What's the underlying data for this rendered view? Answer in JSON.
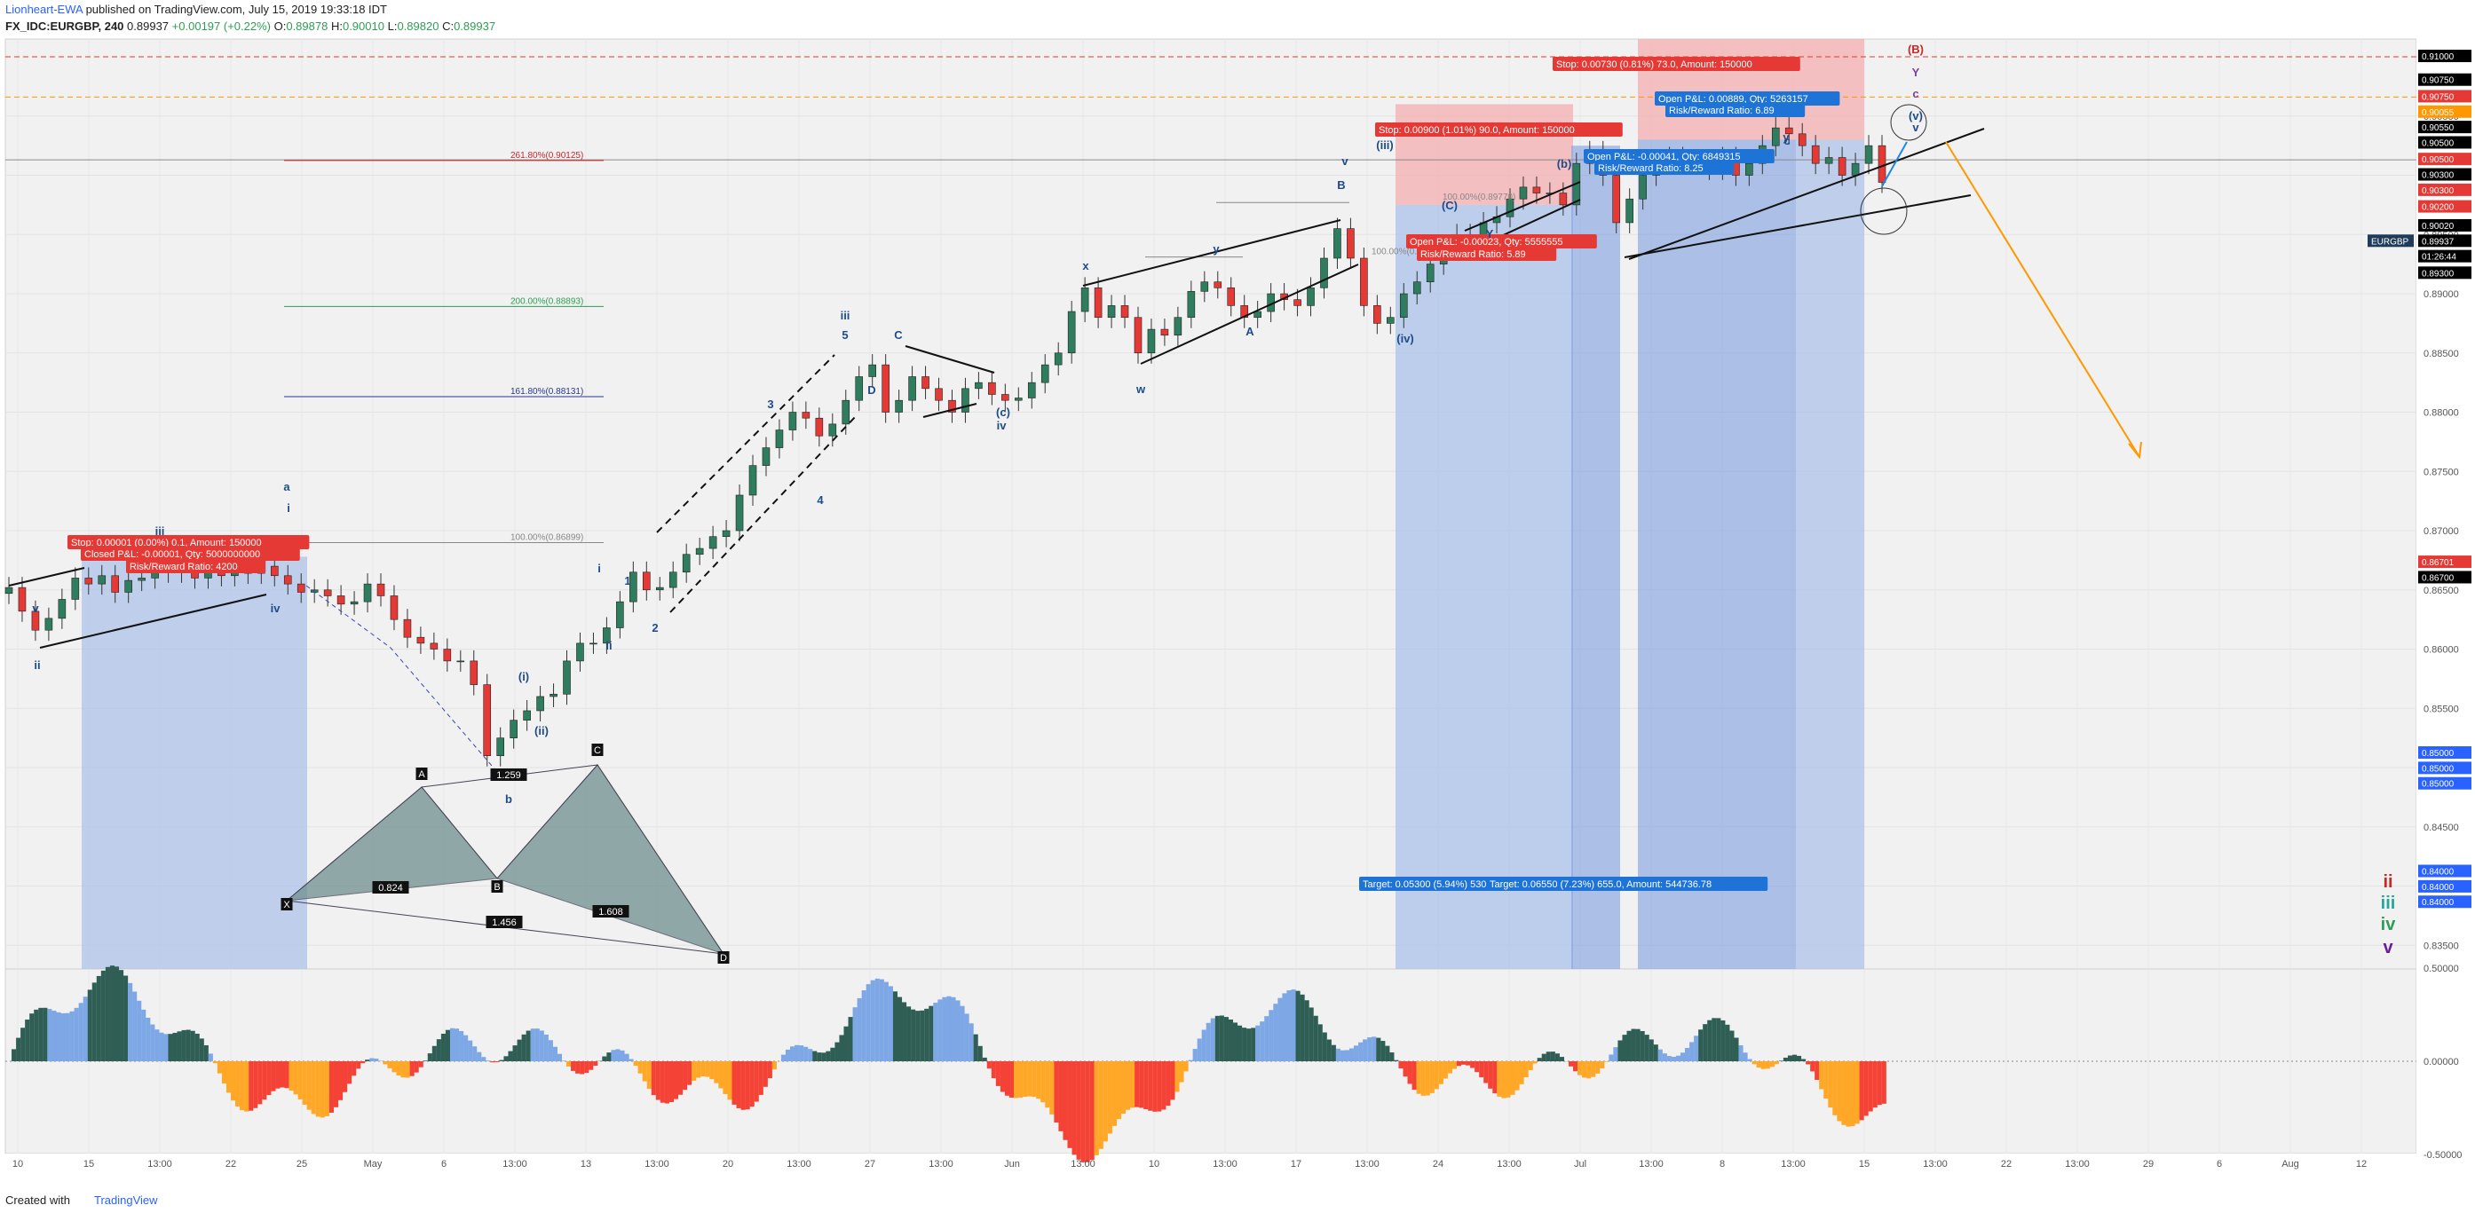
{
  "header": {
    "author": "Lionheart-EWA",
    "published_text": "published on TradingView.com, July 15, 2019 19:33:18 IDT",
    "symbol": "FX_IDC:EURGBP, 240",
    "last": "0.89937",
    "change": "+0.00197 (+0.22%)",
    "o_label": "O:",
    "o_value": "0.89878",
    "h_label": "H:",
    "h_value": "0.90010",
    "l_label": "L:",
    "l_value": "0.89820",
    "c_label": "C:",
    "c_value": "0.89937"
  },
  "footer": {
    "created_with": "Created with",
    "brand": "TradingView"
  },
  "colors": {
    "up": "#2e7d5e",
    "down": "#e53935",
    "osc_up_dark": "#2f5f54",
    "osc_up_light": "#7ea7e6",
    "osc_down_red": "#f44336",
    "osc_down_orange": "#ffa726",
    "long_zone": "#a9c1e8",
    "short_zone": "#f3aeb0",
    "fib": "#c62828"
  },
  "chart_data": {
    "type": "candlestick",
    "symbol": "FX_IDC:EURGBP",
    "ylim": [
      0.833,
      0.9115
    ],
    "price_ticks": [
      "0.90500",
      "0.90000",
      "0.89500",
      "0.89000",
      "0.88500",
      "0.88000",
      "0.87500",
      "0.87000",
      "0.86500",
      "0.86000",
      "0.85500",
      "0.85000",
      "0.84500",
      "0.84000",
      "0.83500"
    ],
    "price_badges": [
      {
        "text": "0.91000",
        "price": 0.91,
        "color": "#000000"
      },
      {
        "text": "0.90750",
        "price": 0.908,
        "color": "#000000"
      },
      {
        "text": "0.90750",
        "price": 0.9066,
        "color": "#e53935"
      },
      {
        "text": "0.90055",
        "price": 0.9053,
        "color": "#ff9800"
      },
      {
        "text": "0.90550",
        "price": 0.904,
        "color": "#000000"
      },
      {
        "text": "0.90500",
        "price": 0.9027,
        "color": "#000000"
      },
      {
        "text": "0.90500",
        "price": 0.9013,
        "color": "#e53935"
      },
      {
        "text": "0.90300",
        "price": 0.9,
        "color": "#000000"
      },
      {
        "text": "0.90300",
        "price": 0.8987,
        "color": "#e53935"
      },
      {
        "text": "0.90200",
        "price": 0.8973,
        "color": "#e53935"
      },
      {
        "text": "0.90020",
        "price": 0.8957,
        "color": "#000000"
      },
      {
        "text": "0.89937",
        "price": 0.8944,
        "color": "#000000"
      },
      {
        "text": "01:26:44",
        "price": 0.8931,
        "color": "#000000"
      },
      {
        "text": "0.89300",
        "price": 0.8917,
        "color": "#000000"
      },
      {
        "text": "0.86701",
        "price": 0.8673,
        "color": "#e53935"
      },
      {
        "text": "0.86700",
        "price": 0.866,
        "color": "#000000"
      },
      {
        "text": "0.85000",
        "price": 0.8512,
        "color": "#2962ff"
      },
      {
        "text": "0.85000",
        "price": 0.8499,
        "color": "#2962ff"
      },
      {
        "text": "0.85000",
        "price": 0.8486,
        "color": "#2962ff"
      },
      {
        "text": "0.84000",
        "price": 0.8412,
        "color": "#2962ff"
      },
      {
        "text": "0.84000",
        "price": 0.8399,
        "color": "#2962ff"
      },
      {
        "text": "0.84000",
        "price": 0.8386,
        "color": "#2962ff"
      }
    ],
    "symbol_badge": "EURGBP",
    "x_ticks": [
      "10",
      "15",
      "13:00",
      "22",
      "25",
      "May",
      "6",
      "13:00",
      "13",
      "13:00",
      "20",
      "13:00",
      "27",
      "13:00",
      "Jun",
      "13:00",
      "10",
      "13:00",
      "17",
      "13:00",
      "24",
      "13:00",
      "Jul",
      "13:00",
      "8",
      "13:00",
      "15",
      "13:00",
      "22",
      "13:00",
      "29",
      "6",
      "Aug",
      "12"
    ],
    "fib_levels": [
      {
        "label": "261.80%(0.90125)",
        "price": 0.90125,
        "color": "#c62828"
      },
      {
        "label": "200.00%(0.88893)",
        "price": 0.88893,
        "color": "#2e9e55"
      },
      {
        "label": "161.80%(0.88131)",
        "price": 0.88131,
        "color": "#283593"
      },
      {
        "label": "100.00%(0.86899)",
        "price": 0.86899,
        "color": "#888888"
      },
      {
        "label": "100.00%(0.89770)",
        "price": 0.8977,
        "color": "#888888"
      },
      {
        "label": "100.00%(0.89???)",
        "price": 0.8931,
        "color": "#888888"
      }
    ],
    "candles_close": [
      0.8652,
      0.8632,
      0.8616,
      0.8626,
      0.8642,
      0.866,
      0.8655,
      0.8662,
      0.8648,
      0.8658,
      0.866,
      0.867,
      0.8665,
      0.8668,
      0.866,
      0.8667,
      0.8662,
      0.8668,
      0.8664,
      0.867,
      0.8662,
      0.8655,
      0.8648,
      0.865,
      0.8645,
      0.8638,
      0.864,
      0.8655,
      0.8645,
      0.8625,
      0.861,
      0.8605,
      0.86,
      0.859,
      0.859,
      0.857,
      0.851,
      0.8525,
      0.854,
      0.8548,
      0.856,
      0.8562,
      0.859,
      0.8605,
      0.8605,
      0.8618,
      0.864,
      0.8665,
      0.865,
      0.8652,
      0.8665,
      0.868,
      0.8685,
      0.8695,
      0.87,
      0.873,
      0.8755,
      0.877,
      0.8785,
      0.88,
      0.8795,
      0.878,
      0.879,
      0.881,
      0.883,
      0.884,
      0.88,
      0.881,
      0.883,
      0.882,
      0.881,
      0.88,
      0.882,
      0.8825,
      0.8815,
      0.881,
      0.8812,
      0.8825,
      0.884,
      0.885,
      0.8885,
      0.8905,
      0.888,
      0.889,
      0.888,
      0.885,
      0.887,
      0.8865,
      0.888,
      0.8902,
      0.891,
      0.8905,
      0.889,
      0.888,
      0.8885,
      0.89,
      0.8895,
      0.889,
      0.8905,
      0.893,
      0.8955,
      0.893,
      0.889,
      0.8875,
      0.888,
      0.89,
      0.891,
      0.8925,
      0.894,
      0.895,
      0.8945,
      0.896,
      0.8965,
      0.898,
      0.899,
      0.8985,
      0.8985,
      0.8975,
      0.901,
      0.902,
      0.9,
      0.896,
      0.898,
      0.9,
      0.901,
      0.9015,
      0.901,
      0.901,
      0.9005,
      0.9015,
      0.9,
      0.901,
      0.9025,
      0.904,
      0.9035,
      0.9025,
      0.901,
      0.9015,
      0.9,
      0.901,
      0.9025,
      0.8994
    ],
    "overlays": {
      "position_labels": [
        {
          "text": "Stop: 0.00730 (0.81%) 73.0, Amount: 150000",
          "kind": "stop"
        },
        {
          "text": "Stop: 0.00900 (1.01%) 90.0, Amount: 150000",
          "kind": "stop"
        },
        {
          "text": "Open P&L: 0.00889, Qty: 5263157",
          "kind": "blue"
        },
        {
          "text": "Risk/Reward Ratio: 6.89",
          "kind": "blue"
        },
        {
          "text": "Open P&L: -0.00041, Qty: 6849315",
          "kind": "blue"
        },
        {
          "text": "Risk/Reward Ratio: 8.25",
          "kind": "blue"
        },
        {
          "text": "Open P&L: -0.00023, Qty: 5555555",
          "kind": "red"
        },
        {
          "text": "Risk/Reward Ratio: 5.89",
          "kind": "red"
        },
        {
          "text": "Stop: 0.00001 (0.00%) 0.1, Amount: 150000",
          "kind": "stop"
        },
        {
          "text": "Closed P&L: -0.00001, Qty: 5000000000",
          "kind": "red"
        },
        {
          "text": "Risk/Reward Ratio: 4200",
          "kind": "red"
        },
        {
          "text": "Target: 0.05300 (5.94%) 530.0, Amount: 4!",
          "kind": "target"
        },
        {
          "text": "Target: 0.06550 (7.23%) 655.0, Amount: 544736.78",
          "kind": "target"
        }
      ],
      "harmonic_labels": [
        "X",
        "A",
        "B",
        "C",
        "D",
        "0.824",
        "1.456",
        "1.608",
        "1.259"
      ],
      "wave_labels": [
        "(B)",
        "Y",
        "c",
        "(v)",
        "v",
        "a",
        "b",
        "c",
        "iii",
        "ii",
        "iv",
        "(iii)",
        "v",
        "(iv)",
        "(i)",
        "(ii)",
        "i",
        "ii",
        "iii",
        "iv",
        "v",
        "1",
        "2",
        "3",
        "4",
        "5",
        "x",
        "w",
        "y",
        "A",
        "B",
        "C",
        "D",
        "(c)",
        "(C)",
        "Y",
        "y",
        "(b)",
        "i",
        "ii",
        "iii",
        "iv",
        "v"
      ],
      "right_labels": [
        {
          "text": "(C)",
          "color": "#c62828"
        },
        {
          "text": "Y",
          "color": "#26a69a"
        },
        {
          "text": "y",
          "color": "#2e9e55"
        },
        {
          "text": "(b)",
          "color": "#6a1b9a"
        }
      ]
    },
    "oscillator": {
      "ticks": [
        "0.50000",
        "0.00000",
        "-0.50000"
      ],
      "ylim": [
        -0.6,
        0.6
      ]
    }
  }
}
